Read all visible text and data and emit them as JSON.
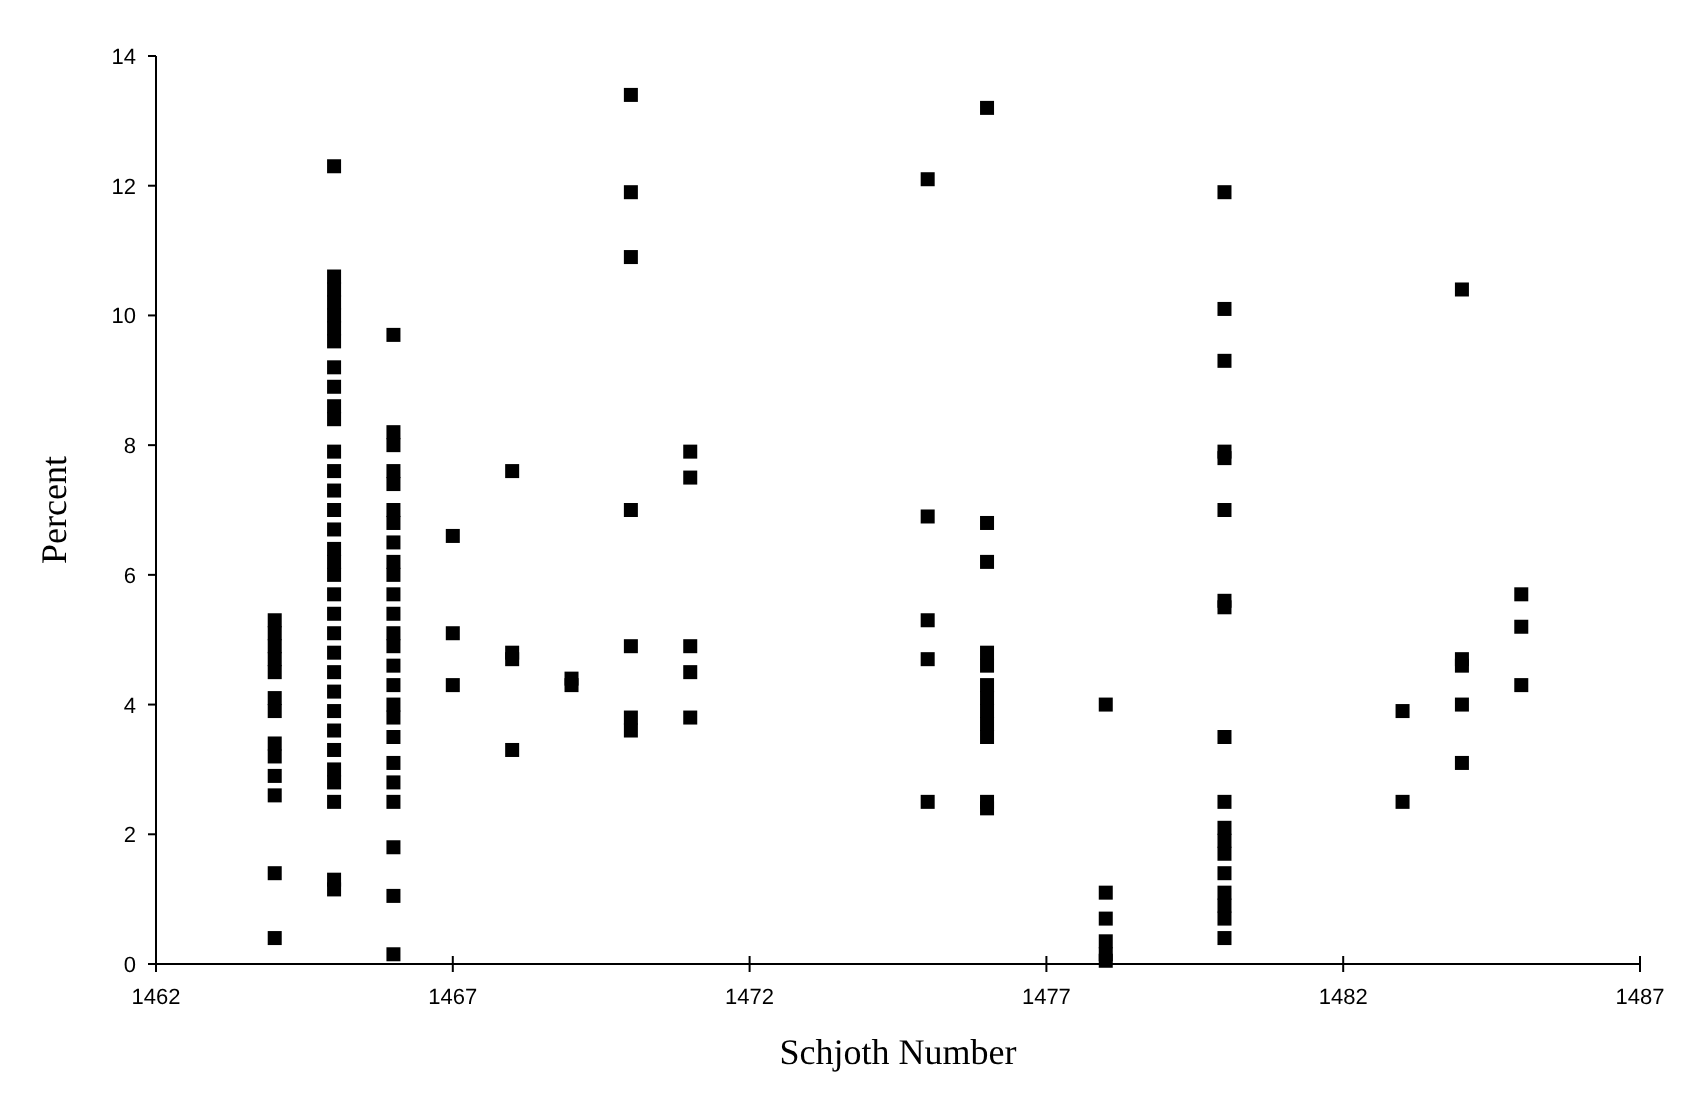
{
  "chart_data": {
    "type": "scatter",
    "xlabel": "Schjoth Number",
    "ylabel": "Percent",
    "xlim": [
      1462,
      1487
    ],
    "xticks": [
      1462,
      1467,
      1472,
      1477,
      1482,
      1487
    ],
    "ylim": [
      0,
      14
    ],
    "yticks": [
      0,
      2,
      4,
      6,
      8,
      10,
      12,
      14
    ],
    "grid": false,
    "marker": "square",
    "series": [
      {
        "color": "#000000",
        "x": [
          1464,
          1464,
          1464,
          1464,
          1464,
          1464,
          1464,
          1464,
          1464,
          1464,
          1464,
          1464,
          1464,
          1465,
          1465,
          1465,
          1465,
          1465,
          1465,
          1465,
          1465,
          1465,
          1465,
          1465,
          1465,
          1465,
          1465,
          1465,
          1465,
          1465,
          1465,
          1465,
          1465,
          1465,
          1465,
          1465,
          1465,
          1465,
          1465,
          1465,
          1465,
          1465,
          1465,
          1465,
          1465,
          1465,
          1466,
          1466,
          1466,
          1466,
          1466,
          1466,
          1466,
          1466,
          1466,
          1466,
          1466,
          1466,
          1466,
          1466,
          1466,
          1466,
          1466,
          1466,
          1466,
          1466,
          1466,
          1466,
          1466,
          1466,
          1466,
          1467,
          1467,
          1467,
          1468,
          1468,
          1468,
          1468,
          1469,
          1469,
          1470,
          1470,
          1470,
          1470,
          1470,
          1470,
          1470,
          1471,
          1471,
          1471,
          1471,
          1471,
          1475,
          1475,
          1475,
          1475,
          1475,
          1476,
          1476,
          1476,
          1476,
          1476,
          1476,
          1476,
          1476,
          1476,
          1476,
          1476,
          1476,
          1478,
          1478,
          1478,
          1478,
          1478,
          1478,
          1480,
          1480,
          1480,
          1480,
          1480,
          1480,
          1480,
          1480,
          1480,
          1480,
          1480,
          1480,
          1480,
          1480,
          1480,
          1480,
          1480,
          1480,
          1483,
          1483,
          1484,
          1484,
          1484,
          1484,
          1484,
          1485,
          1485,
          1485
        ],
        "values": [
          5.3,
          5.1,
          4.9,
          4.7,
          4.5,
          4.1,
          3.9,
          3.4,
          3.2,
          2.9,
          2.6,
          1.4,
          0.4,
          12.3,
          10.6,
          10.4,
          10.2,
          10.0,
          9.8,
          9.6,
          9.2,
          8.9,
          8.6,
          8.4,
          7.9,
          7.6,
          7.3,
          7.0,
          6.7,
          6.4,
          6.2,
          6.0,
          5.7,
          5.4,
          5.1,
          4.8,
          4.5,
          4.2,
          3.9,
          3.6,
          3.3,
          3.0,
          2.8,
          2.5,
          1.3,
          1.15,
          9.7,
          8.2,
          8.0,
          7.6,
          7.4,
          7.0,
          6.8,
          6.5,
          6.2,
          6.0,
          5.7,
          5.4,
          5.1,
          4.9,
          4.6,
          4.3,
          4.0,
          3.8,
          3.5,
          3.1,
          2.8,
          2.5,
          1.8,
          1.05,
          0.15,
          6.6,
          5.1,
          4.3,
          7.6,
          4.8,
          4.7,
          3.3,
          4.4,
          4.3,
          13.4,
          11.9,
          10.9,
          7.0,
          4.9,
          3.8,
          3.6,
          7.9,
          7.5,
          4.9,
          4.5,
          3.8,
          12.1,
          6.9,
          5.3,
          4.7,
          2.5,
          13.2,
          6.8,
          6.2,
          4.8,
          4.6,
          4.3,
          4.1,
          3.9,
          3.7,
          3.5,
          2.5,
          2.4,
          4.0,
          1.1,
          0.7,
          0.35,
          0.15,
          0.05,
          11.9,
          10.1,
          9.3,
          7.9,
          7.8,
          7.0,
          5.6,
          5.5,
          3.5,
          2.5,
          2.1,
          1.9,
          1.7,
          1.4,
          1.1,
          0.9,
          0.7,
          0.4,
          3.9,
          2.5,
          10.4,
          4.7,
          4.6,
          4.0,
          3.1,
          5.7,
          5.2,
          4.3
        ]
      }
    ]
  }
}
